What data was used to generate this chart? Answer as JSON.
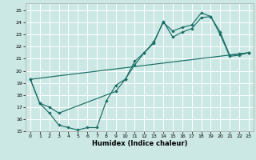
{
  "xlabel": "Humidex (Indice chaleur)",
  "bg_color": "#cce8e5",
  "grid_color": "#ffffff",
  "line_color": "#1a6e66",
  "xlim": [
    -0.5,
    23.5
  ],
  "ylim": [
    15,
    25.6
  ],
  "yticks": [
    15,
    16,
    17,
    18,
    19,
    20,
    21,
    22,
    23,
    24,
    25
  ],
  "xticks": [
    0,
    1,
    2,
    3,
    4,
    5,
    6,
    7,
    8,
    9,
    10,
    11,
    12,
    13,
    14,
    15,
    16,
    17,
    18,
    19,
    20,
    21,
    22,
    23
  ],
  "line1_x": [
    0,
    1,
    2,
    3,
    4,
    5,
    6,
    7,
    8,
    9,
    10,
    11,
    12,
    13,
    14,
    15,
    16,
    17,
    18,
    19,
    20,
    21,
    22,
    23
  ],
  "line1_y": [
    19.3,
    17.3,
    16.5,
    15.5,
    15.3,
    15.1,
    15.3,
    15.3,
    17.5,
    18.8,
    19.3,
    20.5,
    21.5,
    22.4,
    24.0,
    23.3,
    23.6,
    23.8,
    24.8,
    24.5,
    23.2,
    21.3,
    21.4,
    21.5
  ],
  "line2_x": [
    0,
    1,
    2,
    3,
    9,
    10,
    11,
    12,
    13,
    14,
    15,
    16,
    17,
    18,
    19,
    20,
    21,
    22,
    23
  ],
  "line2_y": [
    19.3,
    17.3,
    17.0,
    16.5,
    18.3,
    19.3,
    20.8,
    21.5,
    22.3,
    24.1,
    22.8,
    23.2,
    23.5,
    24.4,
    24.5,
    23.0,
    21.2,
    21.3,
    21.5
  ],
  "line3_x": [
    0,
    23
  ],
  "line3_y": [
    19.3,
    21.5
  ]
}
